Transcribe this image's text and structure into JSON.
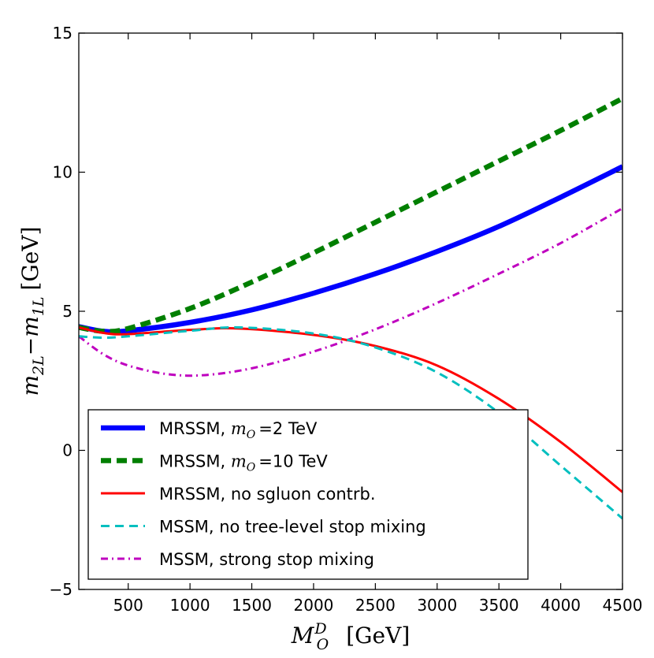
{
  "chart_data": {
    "type": "line",
    "title": "",
    "xlabel": "M_O^D  [GeV]",
    "ylabel": "m_2L − m_1L  [GeV]",
    "xlim": [
      100,
      4500
    ],
    "ylim": [
      -5,
      15
    ],
    "xticks": [
      500,
      1000,
      1500,
      2000,
      2500,
      3000,
      3500,
      4000,
      4500
    ],
    "yticks": [
      -5,
      0,
      5,
      10,
      15
    ],
    "xtick_labels": [
      "500",
      "1000",
      "1500",
      "2000",
      "2500",
      "3000",
      "3500",
      "4000",
      "4500"
    ],
    "ytick_labels": [
      "−5",
      "0",
      "5",
      "10",
      "15"
    ],
    "grid": false,
    "legend_position": "bottom-left",
    "series": [
      {
        "name": "MRSSM, m_O =2 TeV",
        "legend_label": "MRSSM, m_O =2 TeV",
        "color": "#0000ff",
        "style": "solid-thick",
        "x": [
          100,
          300,
          500,
          1000,
          1500,
          2000,
          2500,
          3000,
          3500,
          4000,
          4500
        ],
        "y": [
          4.45,
          4.28,
          4.3,
          4.6,
          5.05,
          5.65,
          6.35,
          7.15,
          8.05,
          9.1,
          10.2
        ]
      },
      {
        "name": "MRSSM, m_O =10 TeV",
        "legend_label": "MRSSM, m_O =10 TeV",
        "color": "#007f00",
        "style": "dashed-thick",
        "x": [
          100,
          300,
          500,
          1000,
          1500,
          2000,
          2500,
          3000,
          3500,
          4000,
          4500
        ],
        "y": [
          4.42,
          4.28,
          4.38,
          5.1,
          6.05,
          7.1,
          8.2,
          9.3,
          10.4,
          11.5,
          12.65
        ]
      },
      {
        "name": "MRSSM, no sgluon contrb.",
        "legend_label": "MRSSM, no sgluon contrb.",
        "color": "#ff0000",
        "style": "solid",
        "x": [
          100,
          300,
          500,
          1000,
          1400,
          2000,
          2500,
          3000,
          3500,
          4000,
          4500
        ],
        "y": [
          4.42,
          4.22,
          4.18,
          4.33,
          4.38,
          4.15,
          3.75,
          3.05,
          1.85,
          0.3,
          -1.5
        ]
      },
      {
        "name": "MSSM, no tree-level stop mixing",
        "legend_label": "MSSM, no tree-level stop mixing",
        "color": "#00bfbf",
        "style": "dashed",
        "x": [
          100,
          300,
          500,
          1000,
          1400,
          2000,
          2500,
          3000,
          3500,
          4000,
          4500
        ],
        "y": [
          4.1,
          4.05,
          4.1,
          4.3,
          4.42,
          4.2,
          3.7,
          2.8,
          1.35,
          -0.55,
          -2.45
        ]
      },
      {
        "name": "MSSM, strong stop mixing",
        "legend_label": "MSSM, strong stop mixing",
        "color": "#bf00bf",
        "style": "dashdot",
        "x": [
          100,
          300,
          500,
          800,
          1100,
          1500,
          2000,
          2500,
          3000,
          3500,
          4000,
          4500
        ],
        "y": [
          4.1,
          3.45,
          3.05,
          2.75,
          2.7,
          2.95,
          3.55,
          4.35,
          5.3,
          6.35,
          7.45,
          8.7
        ]
      }
    ]
  }
}
